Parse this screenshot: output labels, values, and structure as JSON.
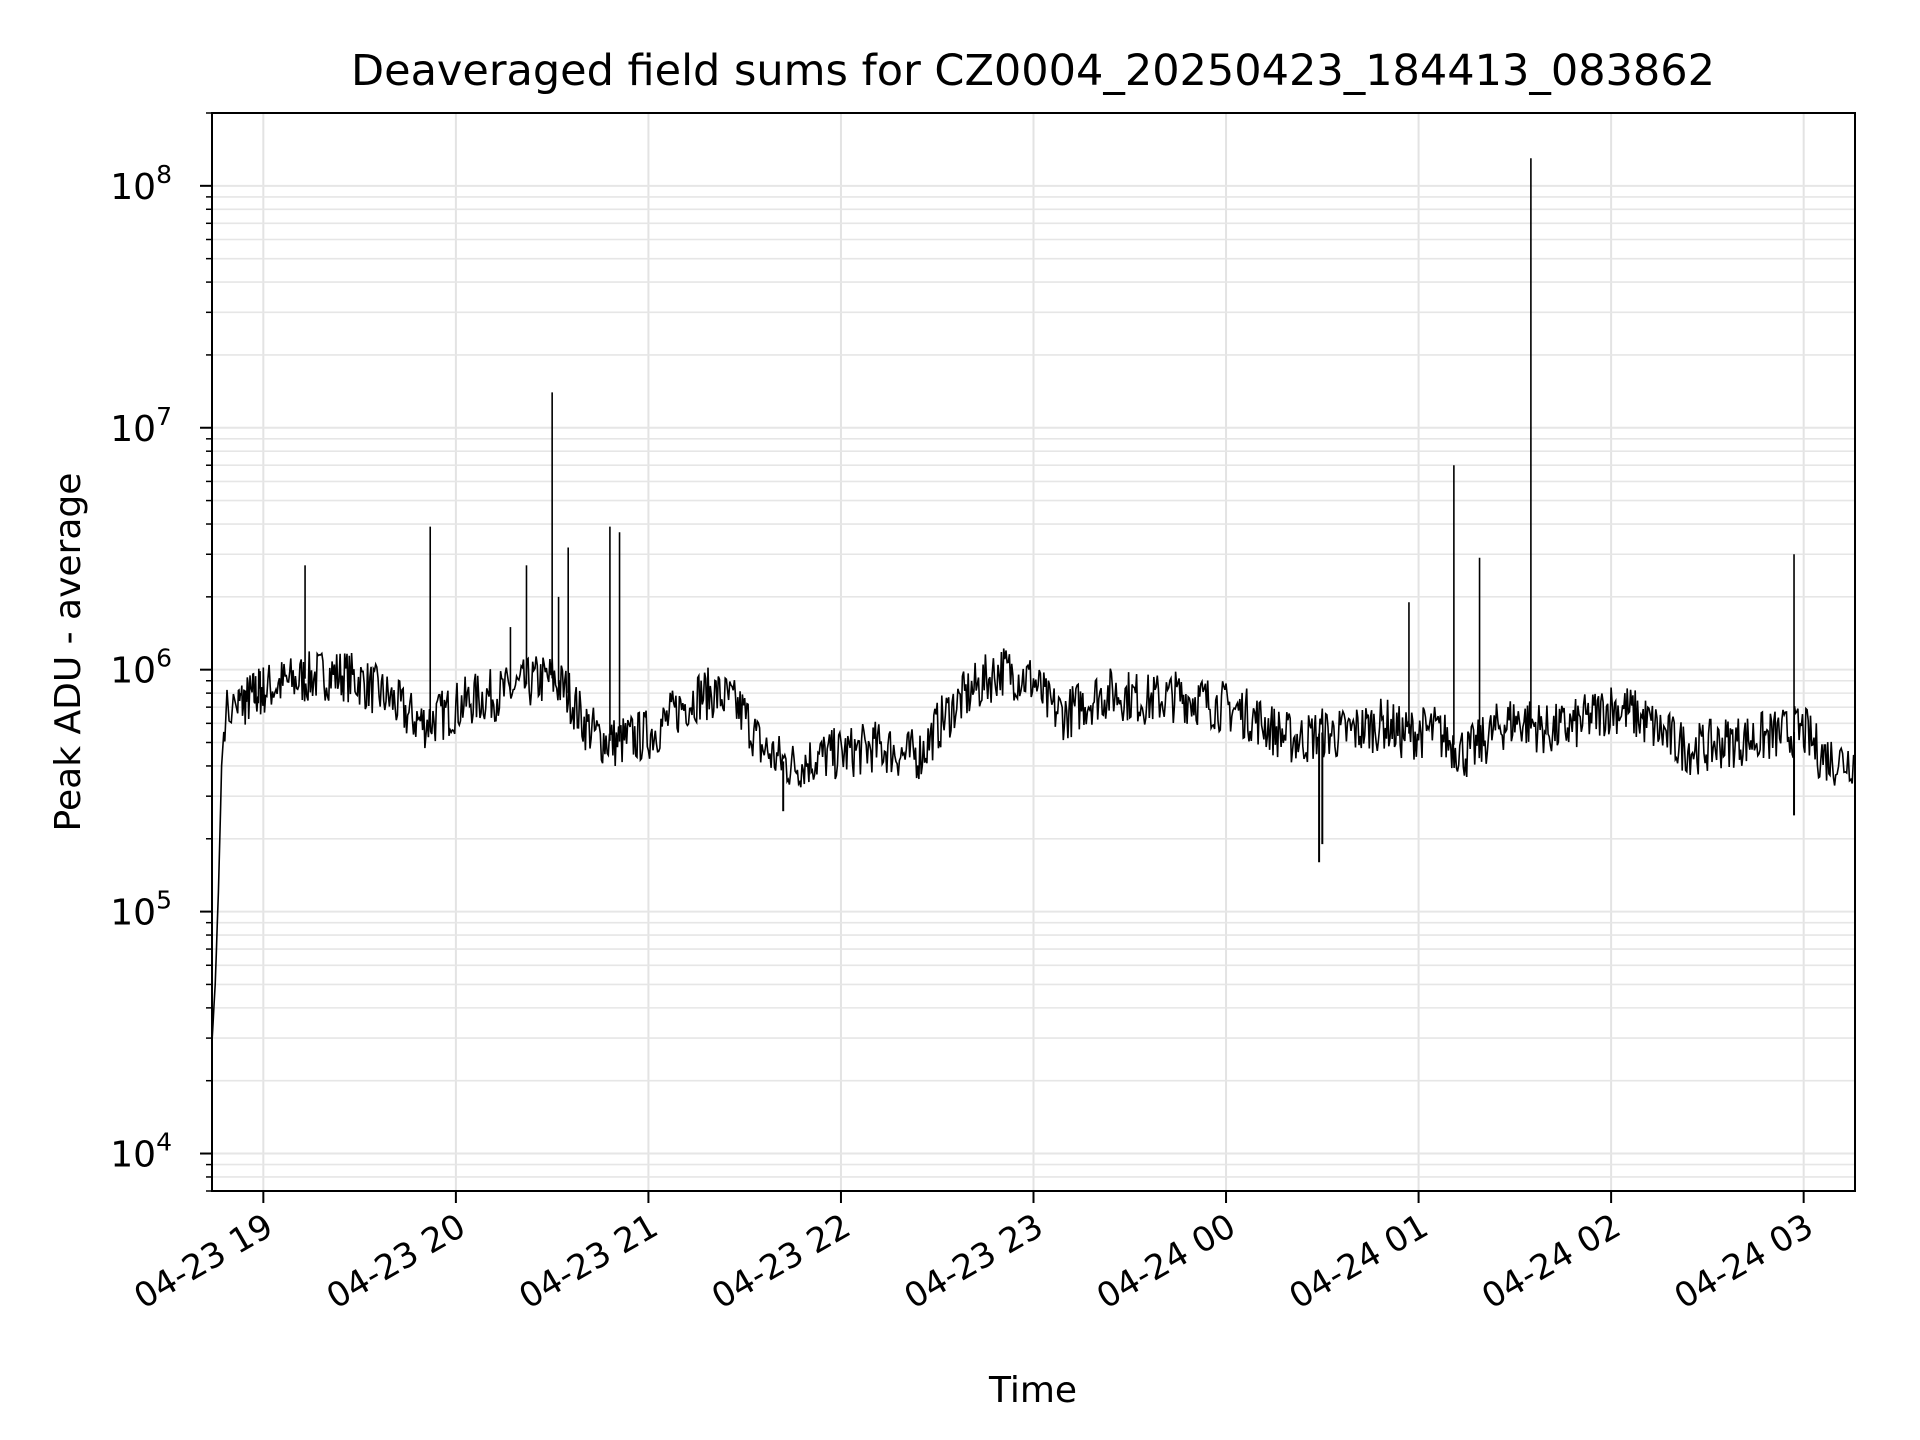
{
  "chart_data": {
    "type": "line",
    "title": "Deaveraged field sums for CZ0004_20250423_184413_083862",
    "xlabel": "Time",
    "ylabel": "Peak ADU - average",
    "yscale": "log",
    "ylim": [
      7000,
      200000000
    ],
    "xlim": [
      "2025-04-23 18:44",
      "2025-04-24 03:16"
    ],
    "x_ticks": [
      {
        "t": "2025-04-23 19:00",
        "label": "04-23 19"
      },
      {
        "t": "2025-04-23 20:00",
        "label": "04-23 20"
      },
      {
        "t": "2025-04-23 21:00",
        "label": "04-23 21"
      },
      {
        "t": "2025-04-23 22:00",
        "label": "04-23 22"
      },
      {
        "t": "2025-04-23 23:00",
        "label": "04-23 23"
      },
      {
        "t": "2025-04-24 00:00",
        "label": "04-24 00"
      },
      {
        "t": "2025-04-24 01:00",
        "label": "04-24 01"
      },
      {
        "t": "2025-04-24 02:00",
        "label": "04-24 02"
      },
      {
        "t": "2025-04-24 03:00",
        "label": "04-24 03"
      }
    ],
    "y_ticks": [
      {
        "value": 10000,
        "base": "10",
        "exp": "4"
      },
      {
        "value": 100000,
        "base": "10",
        "exp": "5"
      },
      {
        "value": 1000000,
        "base": "10",
        "exp": "6"
      },
      {
        "value": 10000000,
        "base": "10",
        "exp": "7"
      },
      {
        "value": 100000000,
        "base": "10",
        "exp": "8"
      }
    ],
    "grid": true,
    "line_color": "#000000",
    "series": [
      {
        "x": [
          "2025-04-23 18:44",
          "2025-04-23 18:45",
          "2025-04-23 18:46",
          "2025-04-23 18:47",
          "2025-04-23 18:48",
          "2025-04-23 18:50",
          "2025-04-23 18:52",
          "2025-04-23 18:55",
          "2025-04-23 18:58",
          "2025-04-23 19:00",
          "2025-04-23 19:05",
          "2025-04-23 19:10",
          "2025-04-23 19:15",
          "2025-04-23 19:20",
          "2025-04-23 19:25",
          "2025-04-23 19:30",
          "2025-04-23 19:35",
          "2025-04-23 19:40",
          "2025-04-23 19:45",
          "2025-04-23 19:50",
          "2025-04-23 19:55",
          "2025-04-23 20:00",
          "2025-04-23 20:05",
          "2025-04-23 20:10",
          "2025-04-23 20:15",
          "2025-04-23 20:20",
          "2025-04-23 20:25",
          "2025-04-23 20:30",
          "2025-04-23 20:35",
          "2025-04-23 20:40",
          "2025-04-23 20:45",
          "2025-04-23 20:50",
          "2025-04-23 20:55",
          "2025-04-23 21:00",
          "2025-04-23 21:05",
          "2025-04-23 21:10",
          "2025-04-23 21:15",
          "2025-04-23 21:20",
          "2025-04-23 21:25",
          "2025-04-23 21:30",
          "2025-04-23 21:35",
          "2025-04-23 21:40",
          "2025-04-23 21:45",
          "2025-04-23 21:50",
          "2025-04-23 21:55",
          "2025-04-23 22:00",
          "2025-04-23 22:05",
          "2025-04-23 22:10",
          "2025-04-23 22:15",
          "2025-04-23 22:20",
          "2025-04-23 22:25",
          "2025-04-23 22:30",
          "2025-04-23 22:35",
          "2025-04-23 22:40",
          "2025-04-23 22:45",
          "2025-04-23 22:50",
          "2025-04-23 22:55",
          "2025-04-23 23:00",
          "2025-04-23 23:05",
          "2025-04-23 23:10",
          "2025-04-23 23:15",
          "2025-04-23 23:20",
          "2025-04-23 23:25",
          "2025-04-23 23:30",
          "2025-04-23 23:35",
          "2025-04-23 23:40",
          "2025-04-23 23:45",
          "2025-04-23 23:50",
          "2025-04-23 23:55",
          "2025-04-24 00:00",
          "2025-04-24 00:05",
          "2025-04-24 00:10",
          "2025-04-24 00:15",
          "2025-04-24 00:20",
          "2025-04-24 00:25",
          "2025-04-24 00:30",
          "2025-04-24 00:35",
          "2025-04-24 00:40",
          "2025-04-24 00:45",
          "2025-04-24 00:50",
          "2025-04-24 00:55",
          "2025-04-24 01:00",
          "2025-04-24 01:05",
          "2025-04-24 01:10",
          "2025-04-24 01:15",
          "2025-04-24 01:20",
          "2025-04-24 01:25",
          "2025-04-24 01:30",
          "2025-04-24 01:35",
          "2025-04-24 01:40",
          "2025-04-24 01:45",
          "2025-04-24 01:50",
          "2025-04-24 01:55",
          "2025-04-24 02:00",
          "2025-04-24 02:05",
          "2025-04-24 02:10",
          "2025-04-24 02:15",
          "2025-04-24 02:20",
          "2025-04-24 02:25",
          "2025-04-24 02:30",
          "2025-04-24 02:35",
          "2025-04-24 02:40",
          "2025-04-24 02:45",
          "2025-04-24 02:50",
          "2025-04-24 02:55",
          "2025-04-24 03:00",
          "2025-04-24 03:05",
          "2025-04-24 03:10",
          "2025-04-24 03:16"
        ],
        "values": [
          29000,
          50000,
          120000,
          400000,
          650000,
          700000,
          720000,
          750000,
          800000,
          830000,
          870000,
          900000,
          930000,
          960000,
          950000,
          900000,
          820000,
          750000,
          650000,
          600000,
          640000,
          700000,
          750000,
          780000,
          800000,
          850000,
          900000,
          920000,
          800000,
          600000,
          520000,
          500000,
          520000,
          540000,
          600000,
          700000,
          780000,
          800000,
          750000,
          650000,
          480000,
          430000,
          400000,
          420000,
          440000,
          450000,
          460000,
          480000,
          470000,
          440000,
          450000,
          580000,
          700000,
          800000,
          900000,
          1000000,
          950000,
          900000,
          700000,
          650000,
          720000,
          780000,
          800000,
          780000,
          750000,
          760000,
          780000,
          760000,
          730000,
          700000,
          670000,
          620000,
          560000,
          520000,
          520000,
          550000,
          540000,
          560000,
          580000,
          600000,
          540000,
          550000,
          560000,
          500000,
          450000,
          500000,
          580000,
          620000,
          600000,
          560000,
          570000,
          600000,
          650000,
          700000,
          680000,
          620000,
          560000,
          500000,
          470000,
          480000,
          500000,
          510000,
          520000,
          530000,
          550000,
          560000,
          450000,
          420000,
          430000
        ]
      }
    ],
    "spikes": [
      {
        "t": "2025-04-23 19:13",
        "value": 2700000
      },
      {
        "t": "2025-04-23 19:52",
        "value": 3900000
      },
      {
        "t": "2025-04-23 20:17",
        "value": 1500000
      },
      {
        "t": "2025-04-23 20:22",
        "value": 2700000
      },
      {
        "t": "2025-04-23 20:30",
        "value": 14000000
      },
      {
        "t": "2025-04-23 20:32",
        "value": 2000000
      },
      {
        "t": "2025-04-23 20:35",
        "value": 3200000
      },
      {
        "t": "2025-04-23 20:48",
        "value": 3900000
      },
      {
        "t": "2025-04-23 20:51",
        "value": 3700000
      },
      {
        "t": "2025-04-24 00:57",
        "value": 1900000
      },
      {
        "t": "2025-04-24 01:11",
        "value": 7000000
      },
      {
        "t": "2025-04-24 01:19",
        "value": 2900000
      },
      {
        "t": "2025-04-24 01:35",
        "value": 130000000
      },
      {
        "t": "2025-04-24 02:57",
        "value": 3000000
      }
    ],
    "dips": [
      {
        "t": "2025-04-23 21:42",
        "value": 260000
      },
      {
        "t": "2025-04-24 00:29",
        "value": 160000
      },
      {
        "t": "2025-04-24 00:30",
        "value": 190000
      },
      {
        "t": "2025-04-24 02:57",
        "value": 250000
      }
    ]
  }
}
